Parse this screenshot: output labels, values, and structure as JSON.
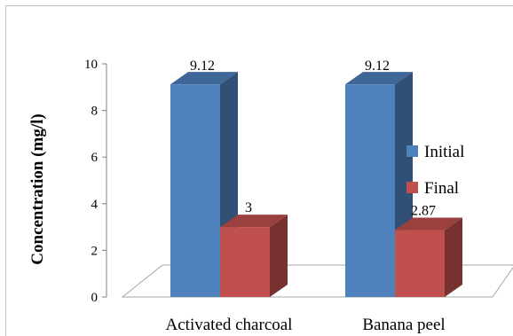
{
  "chart_data": {
    "type": "bar",
    "categories": [
      "Activated charcoal",
      "Banana peel"
    ],
    "series": [
      {
        "name": "Initial",
        "values": [
          9.12,
          9.12
        ],
        "color": "#4F81BD",
        "data_labels": [
          "9.12",
          "9.12"
        ]
      },
      {
        "name": "Final",
        "values": [
          3,
          2.87
        ],
        "color": "#C0504D",
        "data_labels": [
          "3",
          "2.87"
        ]
      }
    ],
    "ylabel": "Concentration (mg/l)",
    "xlabel": "",
    "ylim": [
      0,
      10
    ],
    "yticks": [
      "0",
      "2",
      "4",
      "6",
      "8",
      "10"
    ],
    "grid": false,
    "legend": "right",
    "style": "3d-clustered-column"
  }
}
